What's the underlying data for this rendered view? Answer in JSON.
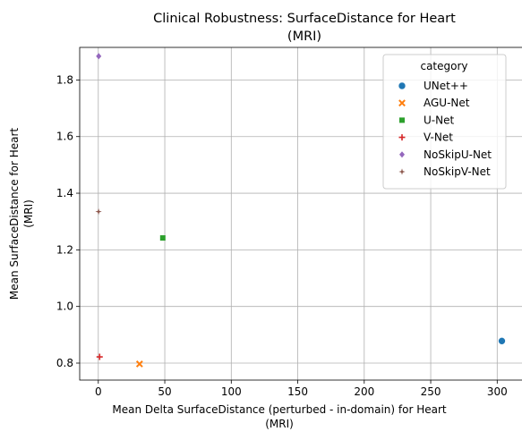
{
  "chart_data": {
    "type": "scatter",
    "title_lines": [
      "Clinical Robustness: SurfaceDistance for Heart",
      "(MRI)"
    ],
    "xlabel_lines": [
      "Mean Delta SurfaceDistance (perturbed - in-domain) for Heart",
      "(MRI)"
    ],
    "ylabel_lines": [
      "Mean SurfaceDistance for Heart",
      "(MRI)"
    ],
    "xlim": [
      -14,
      320
    ],
    "ylim": [
      0.74,
      1.915
    ],
    "xticks": [
      0,
      50,
      100,
      150,
      200,
      250,
      300
    ],
    "yticks": [
      0.8,
      1.0,
      1.2,
      1.4,
      1.6,
      1.8
    ],
    "xtick_labels": [
      "0",
      "50",
      "100",
      "150",
      "200",
      "250",
      "300"
    ],
    "ytick_labels": [
      "0.8",
      "1.0",
      "1.2",
      "1.4",
      "1.6",
      "1.8"
    ],
    "grid": true,
    "legend": {
      "title": "category",
      "placement": "top-right"
    },
    "series": [
      {
        "name": "UNet++",
        "marker": "circle",
        "color": "#1f77b4",
        "points": [
          [
            303.5,
            0.878
          ]
        ]
      },
      {
        "name": "AGU-Net",
        "marker": "x",
        "color": "#ff7f0e",
        "points": [
          [
            31.0,
            0.797
          ]
        ]
      },
      {
        "name": "U-Net",
        "marker": "square",
        "color": "#2ca02c",
        "points": [
          [
            48.5,
            1.242
          ]
        ]
      },
      {
        "name": "V-Net",
        "marker": "plus",
        "color": "#d62728",
        "points": [
          [
            1.0,
            0.822
          ]
        ]
      },
      {
        "name": "NoSkipU-Net",
        "marker": "diamond",
        "color": "#9467bd",
        "points": [
          [
            0.3,
            1.884
          ]
        ]
      },
      {
        "name": "NoSkipV-Net",
        "marker": "star",
        "color": "#8c564b",
        "points": [
          [
            0.2,
            1.335
          ]
        ]
      }
    ]
  }
}
